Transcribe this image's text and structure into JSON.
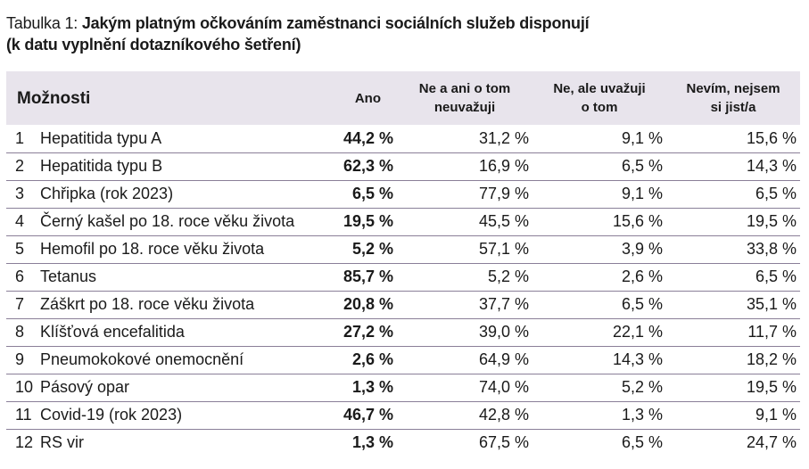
{
  "caption": {
    "lead": "Tabulka 1: ",
    "title_line1": "Jakým platným očkováním zaměstnanci sociálních služeb disponují",
    "title_line2": "(k datu vyplnění dotazníkového šetření)"
  },
  "table": {
    "headers": {
      "options": "Možnosti",
      "yes": "Ano",
      "no_not_considering_line1": "Ne a ani o tom",
      "no_not_considering_line2": "neuvažuji",
      "no_considering_line1": "Ne, ale uvažuji",
      "no_considering_line2": "o tom",
      "unsure_line1": "Nevím, nejsem",
      "unsure_line2": "si jist/a"
    },
    "rows": [
      {
        "num": "1",
        "name": "Hepatitida typu A",
        "yes": "44,2 %",
        "no": "31,2 %",
        "consider": "9,1 %",
        "unsure": "15,6 %"
      },
      {
        "num": "2",
        "name": "Hepatitida typu B",
        "yes": "62,3 %",
        "no": "16,9 %",
        "consider": "6,5 %",
        "unsure": "14,3 %"
      },
      {
        "num": "3",
        "name": "Chřipka (rok 2023)",
        "yes": "6,5 %",
        "no": "77,9 %",
        "consider": "9,1 %",
        "unsure": "6,5 %"
      },
      {
        "num": "4",
        "name": "Černý kašel po 18. roce věku života",
        "yes": "19,5 %",
        "no": "45,5 %",
        "consider": "15,6 %",
        "unsure": "19,5 %"
      },
      {
        "num": "5",
        "name": "Hemofil po 18. roce věku života",
        "yes": "5,2 %",
        "no": "57,1 %",
        "consider": "3,9 %",
        "unsure": "33,8 %"
      },
      {
        "num": "6",
        "name": "Tetanus",
        "yes": "85,7 %",
        "no": "5,2 %",
        "consider": "2,6 %",
        "unsure": "6,5 %"
      },
      {
        "num": "7",
        "name": "Záškrt po 18. roce věku života",
        "yes": "20,8 %",
        "no": "37,7 %",
        "consider": "6,5 %",
        "unsure": "35,1 %"
      },
      {
        "num": "8",
        "name": "Klíšťová encefalitida",
        "yes": "27,2 %",
        "no": "39,0 %",
        "consider": "22,1 %",
        "unsure": "11,7 %"
      },
      {
        "num": "9",
        "name": "Pneumokokové onemocnění",
        "yes": "2,6 %",
        "no": "64,9 %",
        "consider": "14,3 %",
        "unsure": "18,2 %"
      },
      {
        "num": "10",
        "name": "Pásový opar",
        "yes": "1,3 %",
        "no": "74,0 %",
        "consider": "5,2 %",
        "unsure": "19,5 %"
      },
      {
        "num": "11",
        "name": "Covid-19 (rok 2023)",
        "yes": "46,7 %",
        "no": "42,8 %",
        "consider": "1,3 %",
        "unsure": "9,1 %"
      },
      {
        "num": "12",
        "name": "RS vir",
        "yes": "1,3 %",
        "no": "67,5 %",
        "consider": "6,5 %",
        "unsure": "24,7 %"
      }
    ]
  }
}
